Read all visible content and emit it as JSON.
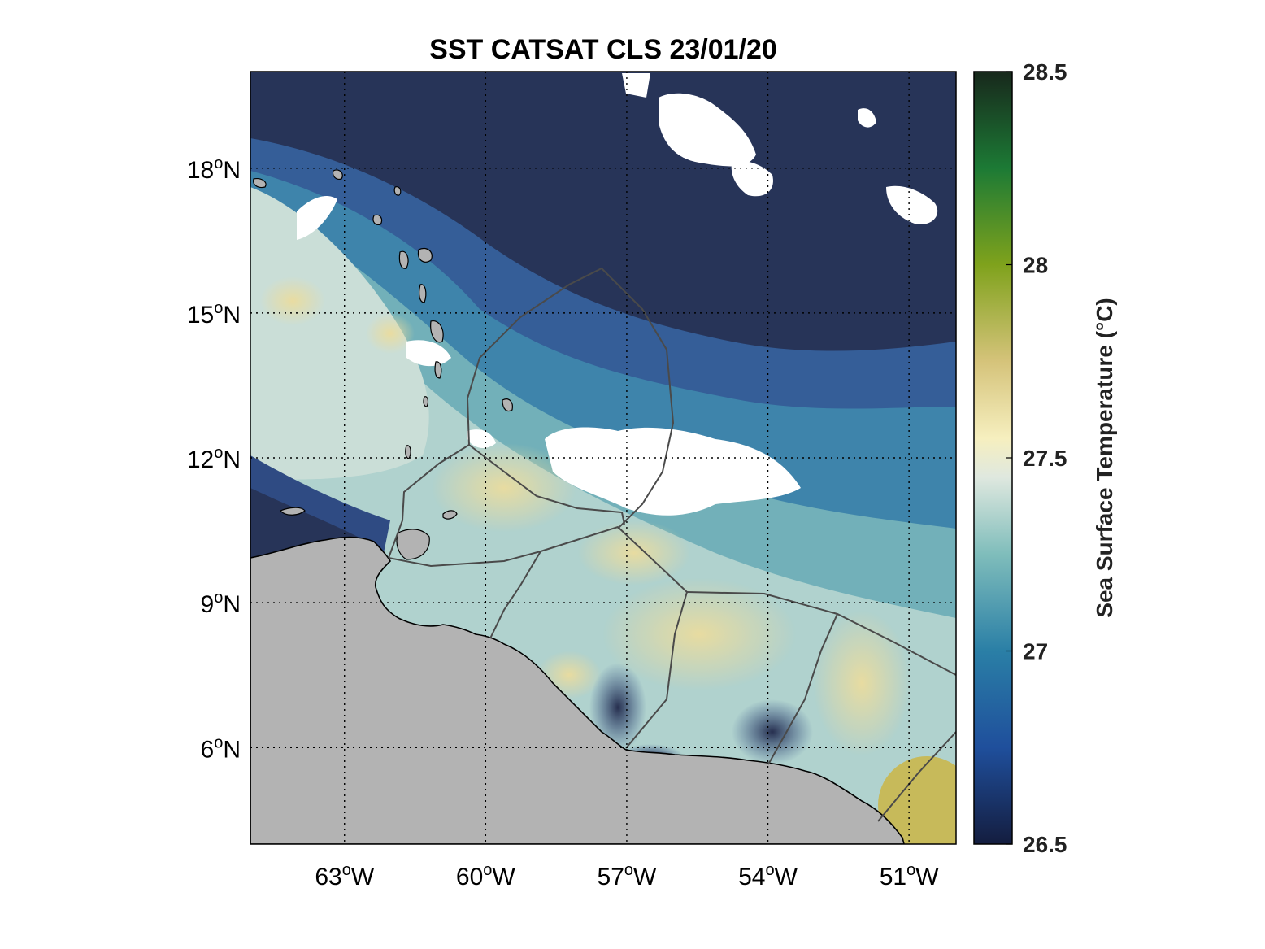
{
  "title": "SST CATSAT CLS 23/01/20",
  "map": {
    "lon_range": [
      -65,
      -50
    ],
    "lat_range": [
      4,
      20
    ],
    "lon_ticks": [
      {
        "value": -63,
        "num": "63",
        "hemi": "W"
      },
      {
        "value": -60,
        "num": "60",
        "hemi": "W"
      },
      {
        "value": -57,
        "num": "57",
        "hemi": "W"
      },
      {
        "value": -54,
        "num": "54",
        "hemi": "W"
      },
      {
        "value": -51,
        "num": "51",
        "hemi": "W"
      }
    ],
    "lat_ticks": [
      {
        "value": 18,
        "num": "18",
        "hemi": "N"
      },
      {
        "value": 15,
        "num": "15",
        "hemi": "N"
      },
      {
        "value": 12,
        "num": "12",
        "hemi": "N"
      },
      {
        "value": 9,
        "num": "9",
        "hemi": "N"
      },
      {
        "value": 6,
        "num": "6",
        "hemi": "N"
      }
    ],
    "degree_symbol": "o",
    "land_color": "#b3b3b3",
    "cloud_color": "#ffffff"
  },
  "colorbar": {
    "label": "Sea Surface Temperature (°C)",
    "min": 26.5,
    "max": 28.5,
    "ticks": [
      "26.5",
      "27",
      "27.5",
      "28",
      "28.5"
    ],
    "tick_values": [
      26.5,
      27,
      27.5,
      28,
      28.5
    ],
    "stops": [
      {
        "value": 26.5,
        "color": "#141d3f"
      },
      {
        "value": 26.75,
        "color": "#1f4f9c"
      },
      {
        "value": 27.0,
        "color": "#2a7fa6"
      },
      {
        "value": 27.25,
        "color": "#7fbdbb"
      },
      {
        "value": 27.45,
        "color": "#dfe8df"
      },
      {
        "value": 27.55,
        "color": "#f6efbf"
      },
      {
        "value": 27.75,
        "color": "#d5c37a"
      },
      {
        "value": 28.0,
        "color": "#7fa21c"
      },
      {
        "value": 28.25,
        "color": "#1c7a35"
      },
      {
        "value": 28.5,
        "color": "#18281c"
      }
    ]
  }
}
